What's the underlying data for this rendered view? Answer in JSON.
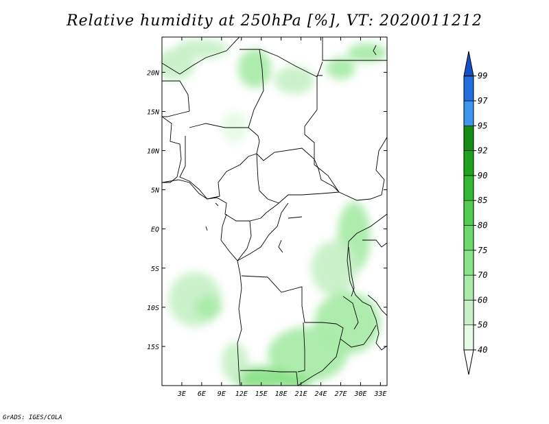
{
  "title": "Relative humidity at 250hPa [%], VT: 2020011212",
  "credit": "GrADS: IGES/COLA",
  "map": {
    "lon_range": [
      0,
      34
    ],
    "lat_range": [
      -20,
      24.5
    ],
    "lon_ticks": [
      {
        "value": 3,
        "label": "3E"
      },
      {
        "value": 6,
        "label": "6E"
      },
      {
        "value": 9,
        "label": "9E"
      },
      {
        "value": 12,
        "label": "12E"
      },
      {
        "value": 15,
        "label": "15E"
      },
      {
        "value": 18,
        "label": "18E"
      },
      {
        "value": 21,
        "label": "21E"
      },
      {
        "value": 24,
        "label": "24E"
      },
      {
        "value": 27,
        "label": "27E"
      },
      {
        "value": 30,
        "label": "30E"
      },
      {
        "value": 33,
        "label": "33E"
      }
    ],
    "lat_ticks": [
      {
        "value": 20,
        "label": "20N"
      },
      {
        "value": 15,
        "label": "15N"
      },
      {
        "value": 10,
        "label": "10N"
      },
      {
        "value": 5,
        "label": "5N"
      },
      {
        "value": 0,
        "label": "EQ"
      },
      {
        "value": -5,
        "label": "5S"
      },
      {
        "value": -10,
        "label": "10S"
      },
      {
        "value": -15,
        "label": "15S"
      }
    ]
  },
  "colorbar": {
    "levels": [
      {
        "label": "40",
        "color": "#ffffff"
      },
      {
        "label": "50",
        "color": "#e6fae6"
      },
      {
        "label": "60",
        "color": "#c8f0c8"
      },
      {
        "label": "70",
        "color": "#aaebaa"
      },
      {
        "label": "75",
        "color": "#8ae28a"
      },
      {
        "label": "80",
        "color": "#6cd96c"
      },
      {
        "label": "85",
        "color": "#50cd50"
      },
      {
        "label": "90",
        "color": "#33b833"
      },
      {
        "label": "92",
        "color": "#1fa31f"
      },
      {
        "label": "95",
        "color": "#128c12"
      },
      {
        "label": "97",
        "color": "#3c96ee"
      },
      {
        "label": "99",
        "color": "#1e6ee0"
      }
    ],
    "top_color": "#1450c8"
  },
  "humidity_fields": [
    {
      "lon": 2,
      "lat": 21,
      "rx": 3.0,
      "ry": 2.0,
      "color": "#c8f0c8"
    },
    {
      "lon": 6,
      "lat": 23,
      "rx": 4.0,
      "ry": 1.2,
      "color": "#c8f0c8"
    },
    {
      "lon": 14,
      "lat": 20.5,
      "rx": 2.5,
      "ry": 2.5,
      "color": "#aaebaa"
    },
    {
      "lon": 20,
      "lat": 19,
      "rx": 3.0,
      "ry": 1.8,
      "color": "#c8f0c8"
    },
    {
      "lon": 27,
      "lat": 20.5,
      "rx": 2.2,
      "ry": 1.4,
      "color": "#aaebaa"
    },
    {
      "lon": 31,
      "lat": 22.5,
      "rx": 3.0,
      "ry": 1.2,
      "color": "#aaebaa"
    },
    {
      "lon": 11,
      "lat": 13,
      "rx": 2.0,
      "ry": 2.0,
      "color": "#e6fae6"
    },
    {
      "lon": 29,
      "lat": -1,
      "rx": 2.5,
      "ry": 4.5,
      "color": "#aaebaa"
    },
    {
      "lon": 26,
      "lat": -5,
      "rx": 3.5,
      "ry": 3.5,
      "color": "#c8f0c8"
    },
    {
      "lon": 5,
      "lat": -9,
      "rx": 4.0,
      "ry": 3.5,
      "color": "#c8f0c8"
    },
    {
      "lon": 7,
      "lat": -10,
      "rx": 2.0,
      "ry": 1.5,
      "color": "#aaebaa"
    },
    {
      "lon": 28,
      "lat": -12,
      "rx": 5.0,
      "ry": 4.0,
      "color": "#aaebaa"
    },
    {
      "lon": 22,
      "lat": -16,
      "rx": 6.0,
      "ry": 3.5,
      "color": "#aaebaa"
    },
    {
      "lon": 15,
      "lat": -19,
      "rx": 4.5,
      "ry": 1.5,
      "color": "#8ae28a"
    },
    {
      "lon": 20,
      "lat": -19.5,
      "rx": 2.5,
      "ry": 1.0,
      "color": "#8ae28a"
    },
    {
      "lon": 11,
      "lat": -17,
      "rx": 2.0,
      "ry": 2.5,
      "color": "#c8f0c8"
    }
  ]
}
